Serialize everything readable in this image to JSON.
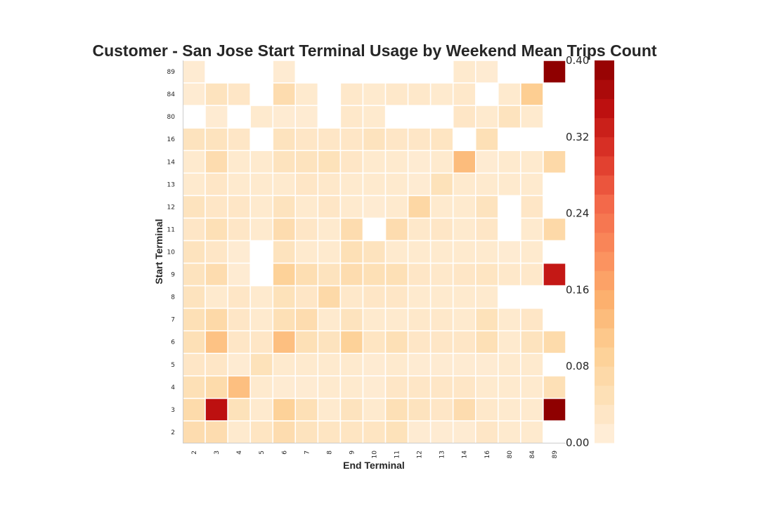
{
  "chart_data": {
    "type": "heatmap",
    "title": "Customer - San Jose Start Terminal Usage by Weekend Mean Trips Count",
    "xlabel": "End Terminal",
    "ylabel": "Start Terminal",
    "x_categories": [
      "2",
      "3",
      "4",
      "5",
      "6",
      "7",
      "8",
      "9",
      "10",
      "11",
      "12",
      "13",
      "14",
      "16",
      "80",
      "84",
      "89"
    ],
    "y_categories": [
      "89",
      "84",
      "80",
      "16",
      "14",
      "13",
      "12",
      "11",
      "10",
      "9",
      "8",
      "7",
      "6",
      "5",
      "4",
      "3",
      "2"
    ],
    "values": [
      [
        0.015,
        null,
        null,
        null,
        0.015,
        null,
        null,
        null,
        null,
        null,
        null,
        null,
        0.02,
        0.015,
        null,
        null,
        0.4
      ],
      [
        0.015,
        0.04,
        0.03,
        null,
        0.06,
        0.02,
        null,
        0.025,
        0.02,
        0.025,
        0.025,
        0.02,
        0.025,
        null,
        0.02,
        0.1,
        null
      ],
      [
        null,
        0.015,
        null,
        0.02,
        0.015,
        0.015,
        null,
        0.025,
        0.02,
        null,
        null,
        null,
        0.03,
        0.02,
        0.04,
        0.02,
        null
      ],
      [
        0.04,
        0.04,
        0.03,
        null,
        0.04,
        0.03,
        0.03,
        0.03,
        0.04,
        0.03,
        0.03,
        0.035,
        null,
        0.05,
        null,
        null,
        null
      ],
      [
        0.02,
        0.06,
        0.02,
        0.02,
        0.04,
        0.04,
        0.045,
        0.03,
        0.02,
        0.02,
        0.015,
        0.02,
        0.13,
        0.015,
        0.02,
        0.02,
        0.07
      ],
      [
        0.02,
        0.03,
        0.02,
        0.02,
        0.02,
        0.03,
        0.025,
        0.02,
        0.02,
        0.02,
        0.015,
        0.045,
        0.02,
        0.02,
        0.02,
        0.02,
        null
      ],
      [
        0.04,
        0.03,
        0.03,
        0.02,
        0.04,
        0.02,
        0.03,
        0.02,
        0.015,
        0.02,
        0.075,
        0.02,
        0.02,
        0.04,
        null,
        0.03,
        null
      ],
      [
        0.03,
        0.05,
        0.03,
        0.02,
        0.06,
        0.03,
        0.02,
        0.06,
        null,
        0.06,
        0.025,
        0.03,
        0.02,
        0.03,
        null,
        0.02,
        0.07
      ],
      [
        0.04,
        0.03,
        0.015,
        null,
        0.04,
        0.02,
        0.02,
        0.05,
        0.04,
        0.02,
        0.02,
        0.02,
        0.02,
        0.02,
        0.015,
        0.02,
        null
      ],
      [
        0.04,
        0.06,
        0.015,
        null,
        0.09,
        0.055,
        0.04,
        0.06,
        0.05,
        0.05,
        0.03,
        0.025,
        0.03,
        0.035,
        0.025,
        0.025,
        0.34
      ],
      [
        0.04,
        0.02,
        0.03,
        0.02,
        0.045,
        0.03,
        0.07,
        0.025,
        0.03,
        0.03,
        0.02,
        0.02,
        0.02,
        0.02,
        null,
        null,
        null
      ],
      [
        0.05,
        0.07,
        0.03,
        0.02,
        0.05,
        0.06,
        0.02,
        0.04,
        0.02,
        0.02,
        0.025,
        0.025,
        0.02,
        0.045,
        0.02,
        0.03,
        null
      ],
      [
        0.05,
        0.12,
        0.03,
        0.03,
        0.125,
        0.05,
        0.04,
        0.09,
        0.035,
        0.05,
        0.03,
        0.03,
        0.03,
        0.05,
        0.02,
        0.04,
        0.065
      ],
      [
        0.03,
        0.03,
        0.015,
        0.045,
        0.02,
        0.02,
        0.02,
        0.02,
        0.015,
        0.02,
        0.015,
        0.015,
        0.015,
        0.015,
        0.02,
        0.02,
        null
      ],
      [
        0.05,
        0.065,
        0.125,
        0.02,
        0.015,
        0.015,
        0.02,
        0.02,
        0.015,
        0.03,
        0.03,
        0.03,
        0.03,
        0.02,
        0.02,
        0.02,
        0.05
      ],
      [
        0.065,
        0.35,
        0.045,
        0.02,
        0.09,
        0.05,
        0.02,
        0.04,
        0.02,
        0.05,
        0.04,
        0.03,
        0.06,
        0.025,
        0.02,
        0.02,
        0.4
      ],
      [
        0.06,
        0.06,
        0.02,
        0.035,
        0.06,
        0.04,
        0.035,
        0.035,
        0.035,
        0.045,
        0.015,
        0.015,
        0.015,
        0.03,
        0.02,
        0.02,
        null
      ]
    ],
    "value_range": [
      0.0,
      0.4
    ],
    "colormap": "OrRd",
    "colorbar_ticks": [
      "0.00",
      "0.08",
      "0.16",
      "0.24",
      "0.32",
      "0.40"
    ],
    "grid": false
  }
}
